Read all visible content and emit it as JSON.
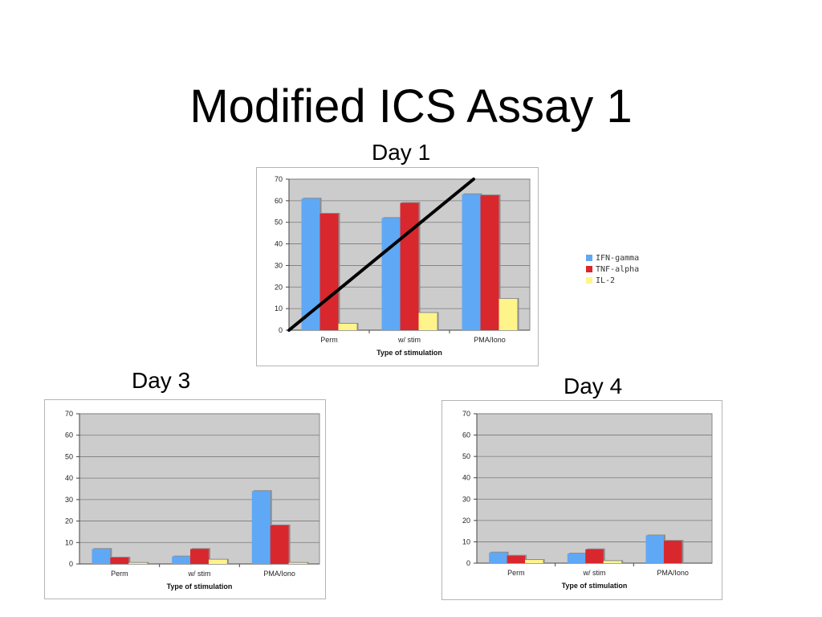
{
  "slide": {
    "title": "Modified ICS Assay 1"
  },
  "colors": {
    "IFN-gamma": "#5fa8f5",
    "TNF-alpha": "#d9272e",
    "IL-2": "#fff48a",
    "plot_bg": "#cccccc",
    "grid": "#7a7a7a"
  },
  "legend": [
    {
      "label": "IFN-gamma",
      "color": "#5fa8f5"
    },
    {
      "label": "TNF-alpha",
      "color": "#d9272e"
    },
    {
      "label": "IL-2",
      "color": "#fff48a"
    }
  ],
  "chart_data": [
    {
      "type": "bar",
      "title": "Day 1",
      "categories": [
        "Perm",
        "w/ stim",
        "PMA/Iono"
      ],
      "series": [
        {
          "name": "IFN-gamma",
          "values": [
            61,
            52,
            63
          ]
        },
        {
          "name": "TNF-alpha",
          "values": [
            54,
            59,
            62.5
          ]
        },
        {
          "name": "IL-2",
          "values": [
            3,
            8,
            14.5
          ]
        }
      ],
      "xlabel": "Type of stimulation",
      "ylabel": "",
      "ylim": [
        0,
        70
      ],
      "yticks": [
        0,
        10,
        20,
        30,
        40,
        50,
        60,
        70
      ],
      "grid": true,
      "annotation": "diagonal black line crossing the plot"
    },
    {
      "type": "bar",
      "title": "Day 3",
      "categories": [
        "Perm",
        "w/ stim",
        "PMA/Iono"
      ],
      "series": [
        {
          "name": "IFN-gamma",
          "values": [
            7,
            3.5,
            34
          ]
        },
        {
          "name": "TNF-alpha",
          "values": [
            3,
            7,
            18
          ]
        },
        {
          "name": "IL-2",
          "values": [
            0.5,
            2,
            0.5
          ]
        }
      ],
      "xlabel": "Type of stimulation",
      "ylabel": "",
      "ylim": [
        0,
        70
      ],
      "yticks": [
        0,
        10,
        20,
        30,
        40,
        50,
        60,
        70
      ],
      "grid": true
    },
    {
      "type": "bar",
      "title": "Day 4",
      "categories": [
        "Perm",
        "w/ stim",
        "PMA/Iono"
      ],
      "series": [
        {
          "name": "IFN-gamma",
          "values": [
            5,
            4.5,
            13
          ]
        },
        {
          "name": "TNF-alpha",
          "values": [
            3.5,
            6.5,
            10.5
          ]
        },
        {
          "name": "IL-2",
          "values": [
            1.5,
            1,
            0
          ]
        }
      ],
      "xlabel": "Type of stimulation",
      "ylabel": "",
      "ylim": [
        0,
        70
      ],
      "yticks": [
        0,
        10,
        20,
        30,
        40,
        50,
        60,
        70
      ],
      "grid": true
    }
  ]
}
